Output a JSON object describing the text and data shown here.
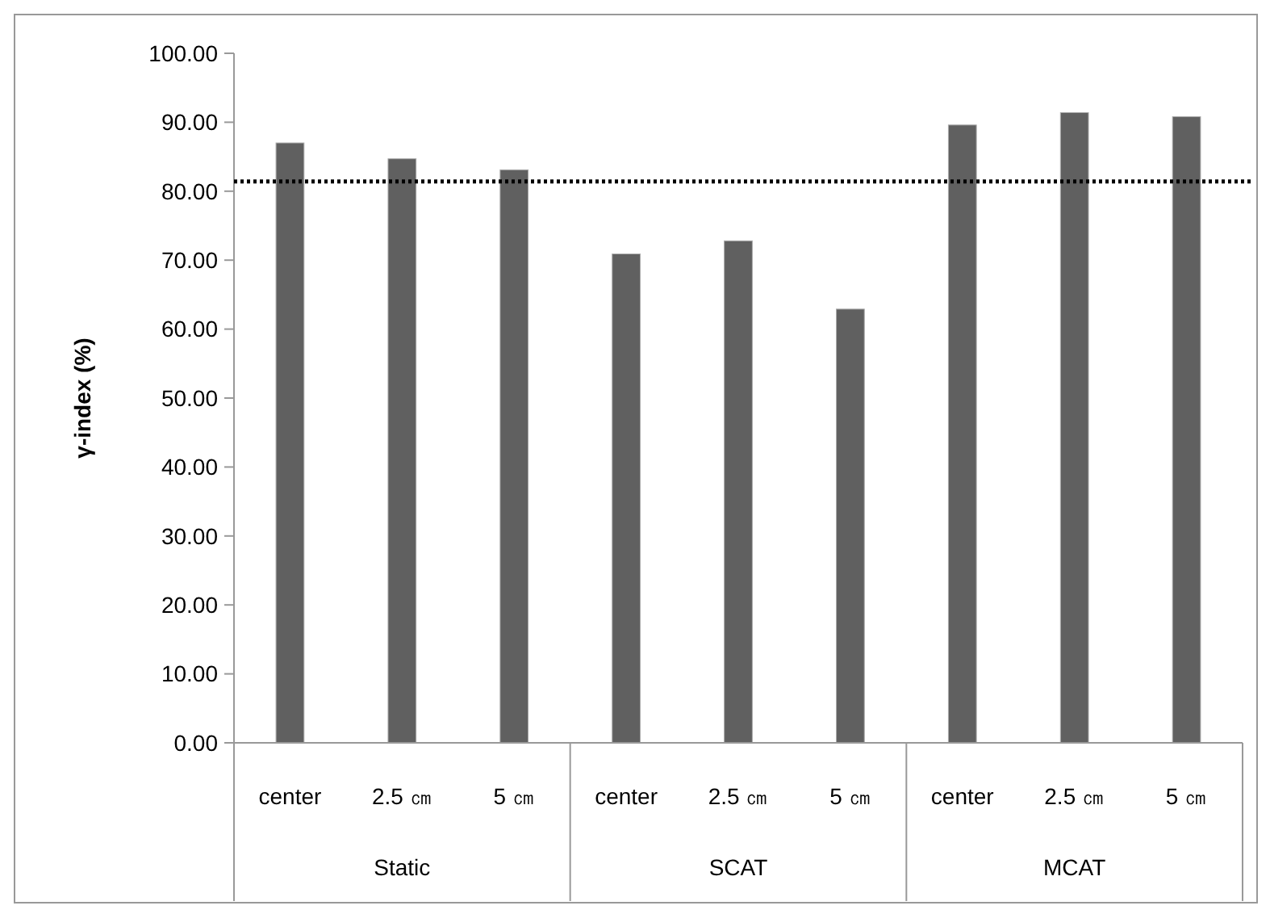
{
  "chart_data": {
    "type": "bar",
    "ylabel": "γ-index (%)",
    "categories": [
      "center",
      "2.5 ㎝",
      "5 ㎝",
      "center",
      "2.5 ㎝",
      "5 ㎝",
      "center",
      "2.5 ㎝",
      "5 ㎝"
    ],
    "values": [
      87.0,
      84.7,
      83.1,
      70.9,
      72.8,
      62.9,
      89.6,
      91.4,
      90.8
    ],
    "color": "#606060",
    "ylim": [
      0,
      100
    ],
    "yticks": [
      {
        "value": 0,
        "label": "0.00"
      },
      {
        "value": 10,
        "label": "10.00"
      },
      {
        "value": 20,
        "label": "20.00"
      },
      {
        "value": 30,
        "label": "30.00"
      },
      {
        "value": 40,
        "label": "40.00"
      },
      {
        "value": 50,
        "label": "50.00"
      },
      {
        "value": 60,
        "label": "60.00"
      },
      {
        "value": 70,
        "label": "70.00"
      },
      {
        "value": 80,
        "label": "80.00"
      },
      {
        "value": 90,
        "label": "90.00"
      },
      {
        "value": 100,
        "label": "100.00"
      }
    ],
    "ref_lines": [
      {
        "axis": "y",
        "value": 81.4,
        "label": null,
        "color": "#000000",
        "line_style": "dotted"
      }
    ],
    "annotations": [
      "Static",
      "SCAT",
      "MCAT"
    ],
    "grid": false
  }
}
